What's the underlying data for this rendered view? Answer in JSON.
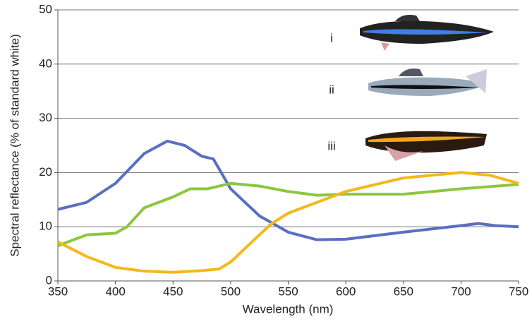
{
  "chart_data": {
    "type": "line",
    "x_label": "Wavelength (nm)",
    "y_label": "Spectral reflectance (% of standard white)",
    "xlim": [
      350,
      750
    ],
    "xticks": [
      350,
      400,
      450,
      500,
      550,
      600,
      650,
      700,
      750
    ],
    "ylim": [
      0,
      50
    ],
    "yticks": [
      0,
      10,
      20,
      30,
      40,
      50
    ],
    "grid": true,
    "series": [
      {
        "name": "i",
        "color": "#5b6ec2",
        "x": [
          350,
          375,
          400,
          425,
          445,
          460,
          475,
          485,
          500,
          525,
          550,
          575,
          600,
          650,
          700,
          715,
          730,
          750
        ],
        "values": [
          13.2,
          14.5,
          18,
          23.5,
          25.8,
          25,
          23,
          22.5,
          17,
          12,
          9,
          7.6,
          7.7,
          9,
          10.2,
          10.6,
          10.2,
          10
        ]
      },
      {
        "name": "ii",
        "color": "#8dc63f",
        "x": [
          350,
          375,
          400,
          410,
          425,
          450,
          465,
          480,
          500,
          525,
          550,
          575,
          600,
          650,
          700,
          750
        ],
        "values": [
          6.5,
          8.5,
          8.8,
          10,
          13.5,
          15.5,
          17,
          17,
          18,
          17.5,
          16.5,
          15.8,
          16,
          16,
          17,
          17.8
        ]
      },
      {
        "name": "iii",
        "color": "#f4b81c",
        "x": [
          350,
          375,
          400,
          425,
          450,
          475,
          490,
          500,
          515,
          535,
          550,
          575,
          600,
          650,
          700,
          725,
          750
        ],
        "values": [
          7.2,
          4.5,
          2.5,
          1.8,
          1.6,
          1.9,
          2.2,
          3.5,
          6.5,
          10.5,
          12.5,
          14.5,
          16.5,
          19,
          20,
          19.5,
          18
        ]
      }
    ]
  }
}
